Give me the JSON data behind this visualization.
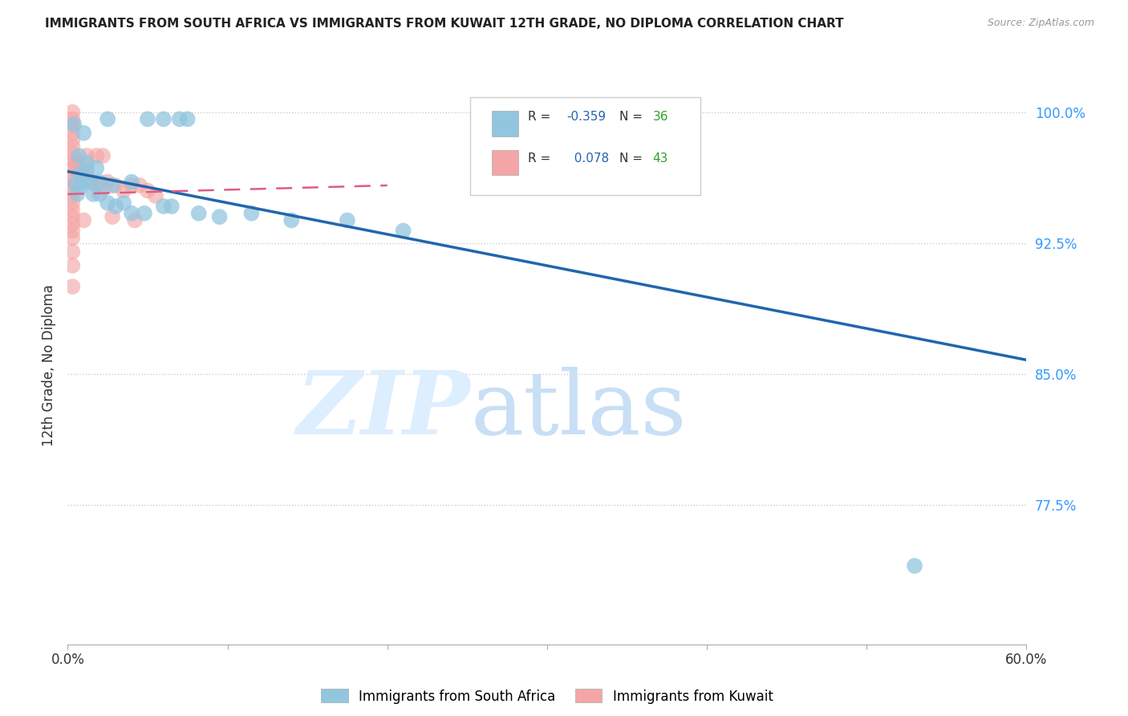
{
  "title": "IMMIGRANTS FROM SOUTH AFRICA VS IMMIGRANTS FROM KUWAIT 12TH GRADE, NO DIPLOMA CORRELATION CHART",
  "source": "Source: ZipAtlas.com",
  "ylabel": "12th Grade, No Diploma",
  "xlim": [
    0.0,
    0.6
  ],
  "ylim": [
    0.695,
    1.015
  ],
  "xticks": [
    0.0,
    0.1,
    0.2,
    0.3,
    0.4,
    0.5,
    0.6
  ],
  "xticklabels": [
    "0.0%",
    "",
    "",
    "",
    "",
    "",
    "60.0%"
  ],
  "yticks": [
    0.775,
    0.85,
    0.925,
    1.0
  ],
  "yticklabels": [
    "77.5%",
    "85.0%",
    "92.5%",
    "100.0%"
  ],
  "blue_color": "#92c5de",
  "pink_color": "#f4a6a6",
  "trendline_blue_color": "#2166ac",
  "trendline_pink_color": "#e05c80",
  "blue_points": [
    [
      0.004,
      0.993
    ],
    [
      0.01,
      0.988
    ],
    [
      0.025,
      0.996
    ],
    [
      0.05,
      0.996
    ],
    [
      0.06,
      0.996
    ],
    [
      0.07,
      0.996
    ],
    [
      0.075,
      0.996
    ],
    [
      0.007,
      0.975
    ],
    [
      0.012,
      0.971
    ],
    [
      0.008,
      0.965
    ],
    [
      0.012,
      0.967
    ],
    [
      0.018,
      0.968
    ],
    [
      0.005,
      0.959
    ],
    [
      0.008,
      0.957
    ],
    [
      0.01,
      0.96
    ],
    [
      0.014,
      0.96
    ],
    [
      0.02,
      0.96
    ],
    [
      0.028,
      0.958
    ],
    [
      0.04,
      0.96
    ],
    [
      0.006,
      0.953
    ],
    [
      0.016,
      0.953
    ],
    [
      0.02,
      0.953
    ],
    [
      0.025,
      0.948
    ],
    [
      0.03,
      0.946
    ],
    [
      0.035,
      0.948
    ],
    [
      0.04,
      0.942
    ],
    [
      0.048,
      0.942
    ],
    [
      0.06,
      0.946
    ],
    [
      0.065,
      0.946
    ],
    [
      0.082,
      0.942
    ],
    [
      0.095,
      0.94
    ],
    [
      0.115,
      0.942
    ],
    [
      0.14,
      0.938
    ],
    [
      0.175,
      0.938
    ],
    [
      0.21,
      0.932
    ],
    [
      0.53,
      0.74
    ]
  ],
  "pink_points": [
    [
      0.003,
      1.0
    ],
    [
      0.003,
      0.996
    ],
    [
      0.003,
      0.992
    ],
    [
      0.003,
      0.988
    ],
    [
      0.003,
      0.984
    ],
    [
      0.003,
      0.98
    ],
    [
      0.003,
      0.976
    ],
    [
      0.003,
      0.972
    ],
    [
      0.003,
      0.968
    ],
    [
      0.003,
      0.964
    ],
    [
      0.003,
      0.96
    ],
    [
      0.003,
      0.956
    ],
    [
      0.003,
      0.952
    ],
    [
      0.003,
      0.948
    ],
    [
      0.003,
      0.944
    ],
    [
      0.003,
      0.94
    ],
    [
      0.003,
      0.936
    ],
    [
      0.003,
      0.932
    ],
    [
      0.003,
      0.928
    ],
    [
      0.003,
      0.92
    ],
    [
      0.003,
      0.912
    ],
    [
      0.003,
      0.9
    ],
    [
      0.006,
      0.972
    ],
    [
      0.008,
      0.968
    ],
    [
      0.01,
      0.965
    ],
    [
      0.012,
      0.963
    ],
    [
      0.015,
      0.96
    ],
    [
      0.018,
      0.958
    ],
    [
      0.022,
      0.956
    ],
    [
      0.025,
      0.96
    ],
    [
      0.03,
      0.958
    ],
    [
      0.035,
      0.955
    ],
    [
      0.04,
      0.958
    ],
    [
      0.042,
      0.938
    ],
    [
      0.045,
      0.958
    ],
    [
      0.05,
      0.955
    ],
    [
      0.055,
      0.952
    ],
    [
      0.028,
      0.94
    ],
    [
      0.01,
      0.938
    ],
    [
      0.005,
      0.97
    ],
    [
      0.012,
      0.975
    ],
    [
      0.018,
      0.975
    ],
    [
      0.022,
      0.975
    ]
  ],
  "blue_trend_x": [
    0.0,
    0.6
  ],
  "blue_trend_y": [
    0.966,
    0.858
  ],
  "pink_trend_x": [
    0.0,
    0.2
  ],
  "pink_trend_y": [
    0.953,
    0.958
  ]
}
